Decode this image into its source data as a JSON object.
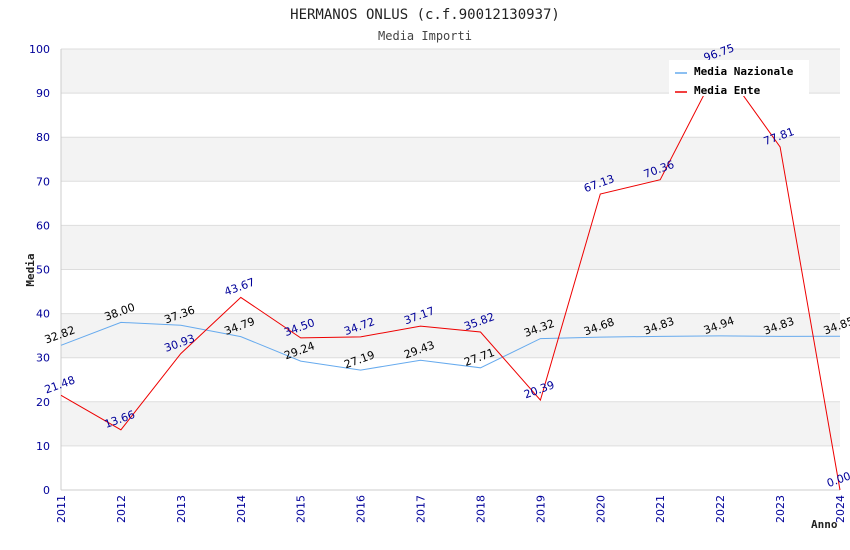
{
  "chart_data": {
    "type": "line",
    "title": "HERMANOS ONLUS (c.f.90012130937)",
    "subtitle": "Media Importi",
    "xlabel": "Anno",
    "ylabel": "Media",
    "ylim": [
      0,
      100
    ],
    "yticks": [
      0,
      10,
      20,
      30,
      40,
      50,
      60,
      70,
      80,
      90,
      100
    ],
    "grid": true,
    "legend_position": "top-right",
    "x": [
      "2011",
      "2012",
      "2013",
      "2014",
      "2015",
      "2016",
      "2017",
      "2018",
      "2019",
      "2020",
      "2021",
      "2022",
      "2023",
      "2024"
    ],
    "series": [
      {
        "name": "Media Nazionale",
        "color": "#66aaee",
        "label_color": "#000000",
        "values": [
          32.82,
          38.0,
          37.36,
          34.79,
          29.24,
          27.19,
          29.43,
          27.71,
          34.32,
          34.68,
          34.83,
          34.94,
          34.83,
          34.85
        ],
        "labels": [
          "32.82",
          "38.00",
          "37.36",
          "34.79",
          "29.24",
          "27.19",
          "29.43",
          "27.71",
          "34.32",
          "34.68",
          "34.83",
          "34.94",
          "34.83",
          "34.85"
        ]
      },
      {
        "name": "Media Ente",
        "color": "#ee0000",
        "label_color": "#000099",
        "values": [
          21.48,
          13.66,
          30.93,
          43.67,
          34.5,
          34.72,
          37.17,
          35.82,
          20.39,
          67.13,
          70.36,
          96.75,
          77.81,
          0.0
        ],
        "labels": [
          "21.48",
          "13.66",
          "30.93",
          "43.67",
          "34.50",
          "34.72",
          "37.17",
          "35.82",
          "20.39",
          "67.13",
          "70.36",
          "96.75",
          "77.81",
          "0.00"
        ]
      }
    ],
    "tick_color": "#000099"
  }
}
